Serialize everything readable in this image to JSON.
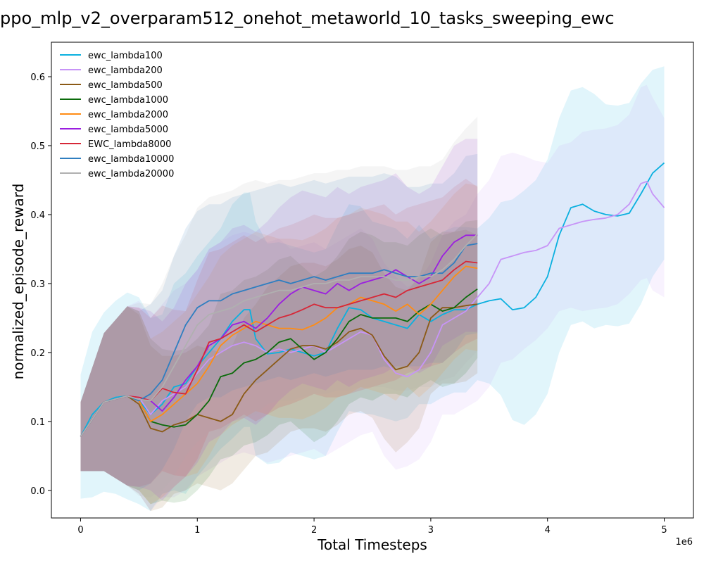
{
  "chart_data": {
    "type": "line",
    "title": "ppo_mlp_v2_overparam512_onehot_metaworld_10_tasks_sweeping_ewc",
    "xlabel": "Total Timesteps",
    "ylabel": "normalized_episode_reward",
    "x_scale_label": "1e6",
    "xlim": [
      -0.25,
      5.25
    ],
    "ylim": [
      -0.04,
      0.65
    ],
    "x_ticks": [
      0,
      1,
      2,
      3,
      4,
      5
    ],
    "y_ticks": [
      0.0,
      0.1,
      0.2,
      0.3,
      0.4,
      0.5,
      0.6
    ],
    "legend_position": "top-left",
    "grid": false,
    "series": [
      {
        "name": "ewc_lambda100",
        "color": "#0bb0df",
        "x": [
          0,
          0.1,
          0.2,
          0.3,
          0.4,
          0.5,
          0.6,
          0.7,
          0.8,
          0.9,
          1.0,
          1.1,
          1.2,
          1.3,
          1.4,
          1.45,
          1.5,
          1.6,
          1.7,
          1.8,
          1.9,
          2.0,
          2.1,
          2.2,
          2.3,
          2.4,
          2.5,
          2.6,
          2.7,
          2.8,
          2.9,
          3.0,
          3.1,
          3.2,
          3.3,
          3.4,
          3.5,
          3.6,
          3.7,
          3.8,
          3.9,
          4.0,
          4.1,
          4.2,
          4.3,
          4.4,
          4.5,
          4.6,
          4.7,
          4.8,
          4.9,
          5.0
        ],
        "y": [
          0.078,
          0.11,
          0.128,
          0.135,
          0.137,
          0.13,
          0.11,
          0.125,
          0.15,
          0.155,
          0.18,
          0.2,
          0.22,
          0.245,
          0.262,
          0.262,
          0.22,
          0.198,
          0.2,
          0.205,
          0.2,
          0.195,
          0.2,
          0.235,
          0.265,
          0.262,
          0.25,
          0.245,
          0.24,
          0.235,
          0.255,
          0.245,
          0.255,
          0.262,
          0.262,
          0.27,
          0.275,
          0.278,
          0.262,
          0.265,
          0.28,
          0.31,
          0.37,
          0.41,
          0.415,
          0.405,
          0.4,
          0.398,
          0.402,
          0.43,
          0.46,
          0.475
        ],
        "band": [
          0.09,
          0.12,
          0.13,
          0.14,
          0.15,
          0.15,
          0.14,
          0.13,
          0.15,
          0.16,
          0.16,
          0.16,
          0.16,
          0.17,
          0.17,
          0.17,
          0.17,
          0.16,
          0.16,
          0.15,
          0.15,
          0.15,
          0.15,
          0.15,
          0.15,
          0.15,
          0.14,
          0.14,
          0.14,
          0.13,
          0.13,
          0.12,
          0.12,
          0.12,
          0.12,
          0.11,
          0.12,
          0.14,
          0.16,
          0.17,
          0.17,
          0.17,
          0.17,
          0.17,
          0.17,
          0.17,
          0.16,
          0.16,
          0.16,
          0.16,
          0.15,
          0.14
        ]
      },
      {
        "name": "ewc_lambda200",
        "color": "#c794f7",
        "x": [
          0,
          0.2,
          0.4,
          0.5,
          0.6,
          0.7,
          0.8,
          0.9,
          1.0,
          1.1,
          1.2,
          1.3,
          1.4,
          1.5,
          1.6,
          1.7,
          1.8,
          1.9,
          2.0,
          2.1,
          2.2,
          2.3,
          2.4,
          2.5,
          2.6,
          2.7,
          2.8,
          2.9,
          3.0,
          3.1,
          3.2,
          3.3,
          3.4,
          3.5,
          3.6,
          3.7,
          3.8,
          3.9,
          4.0,
          4.1,
          4.2,
          4.3,
          4.4,
          4.5,
          4.6,
          4.7,
          4.8,
          4.85,
          4.9,
          5.0
        ],
        "y": [
          0.078,
          0.128,
          0.137,
          0.135,
          0.11,
          0.13,
          0.14,
          0.15,
          0.17,
          0.19,
          0.2,
          0.21,
          0.215,
          0.21,
          0.2,
          0.205,
          0.2,
          0.205,
          0.21,
          0.2,
          0.21,
          0.22,
          0.23,
          0.225,
          0.19,
          0.17,
          0.165,
          0.175,
          0.2,
          0.24,
          0.25,
          0.26,
          0.28,
          0.3,
          0.335,
          0.34,
          0.345,
          0.348,
          0.355,
          0.38,
          0.385,
          0.39,
          0.393,
          0.395,
          0.4,
          0.415,
          0.445,
          0.448,
          0.43,
          0.41
        ],
        "band": [
          0.05,
          0.1,
          0.13,
          0.14,
          0.14,
          0.14,
          0.15,
          0.15,
          0.15,
          0.16,
          0.16,
          0.16,
          0.16,
          0.16,
          0.16,
          0.16,
          0.15,
          0.15,
          0.15,
          0.15,
          0.15,
          0.15,
          0.15,
          0.14,
          0.14,
          0.14,
          0.13,
          0.13,
          0.13,
          0.13,
          0.14,
          0.14,
          0.15,
          0.15,
          0.15,
          0.15,
          0.14,
          0.13,
          0.12,
          0.12,
          0.12,
          0.13,
          0.13,
          0.13,
          0.13,
          0.13,
          0.14,
          0.14,
          0.14,
          0.13
        ]
      },
      {
        "name": "ewc_lambda500",
        "color": "#8b5a16",
        "x": [
          0,
          0.2,
          0.4,
          0.5,
          0.6,
          0.7,
          0.8,
          0.9,
          1.0,
          1.1,
          1.2,
          1.3,
          1.4,
          1.5,
          1.6,
          1.7,
          1.8,
          1.9,
          2.0,
          2.1,
          2.2,
          2.3,
          2.4,
          2.5,
          2.6,
          2.7,
          2.8,
          2.9,
          3.0,
          3.1,
          3.2,
          3.3,
          3.4
        ],
        "y": [
          0.078,
          0.128,
          0.137,
          0.125,
          0.09,
          0.085,
          0.095,
          0.1,
          0.11,
          0.105,
          0.1,
          0.11,
          0.14,
          0.16,
          0.175,
          0.19,
          0.205,
          0.21,
          0.21,
          0.205,
          0.215,
          0.23,
          0.235,
          0.225,
          0.195,
          0.175,
          0.18,
          0.2,
          0.25,
          0.265,
          0.265,
          0.268,
          0.27
        ],
        "band": [
          0.05,
          0.1,
          0.13,
          0.13,
          0.12,
          0.11,
          0.1,
          0.1,
          0.1,
          0.1,
          0.1,
          0.1,
          0.11,
          0.11,
          0.12,
          0.12,
          0.12,
          0.12,
          0.12,
          0.12,
          0.12,
          0.12,
          0.12,
          0.12,
          0.12,
          0.12,
          0.11,
          0.11,
          0.11,
          0.11,
          0.11,
          0.11,
          0.1
        ]
      },
      {
        "name": "ewc_lambda1000",
        "color": "#0b6b0b",
        "x": [
          0,
          0.2,
          0.4,
          0.5,
          0.6,
          0.7,
          0.8,
          0.9,
          1.0,
          1.1,
          1.2,
          1.3,
          1.4,
          1.5,
          1.6,
          1.7,
          1.8,
          1.9,
          2.0,
          2.1,
          2.2,
          2.3,
          2.4,
          2.5,
          2.6,
          2.7,
          2.8,
          2.9,
          3.0,
          3.1,
          3.2,
          3.3,
          3.4
        ],
        "y": [
          0.078,
          0.128,
          0.137,
          0.13,
          0.1,
          0.095,
          0.092,
          0.095,
          0.11,
          0.13,
          0.165,
          0.17,
          0.185,
          0.19,
          0.2,
          0.215,
          0.22,
          0.205,
          0.19,
          0.2,
          0.22,
          0.245,
          0.255,
          0.25,
          0.25,
          0.25,
          0.245,
          0.26,
          0.27,
          0.26,
          0.265,
          0.28,
          0.292
        ],
        "band": [
          0.05,
          0.1,
          0.13,
          0.13,
          0.12,
          0.11,
          0.11,
          0.11,
          0.11,
          0.11,
          0.12,
          0.12,
          0.12,
          0.12,
          0.12,
          0.12,
          0.12,
          0.12,
          0.12,
          0.12,
          0.12,
          0.12,
          0.12,
          0.12,
          0.11,
          0.11,
          0.11,
          0.11,
          0.11,
          0.11,
          0.11,
          0.11,
          0.1
        ]
      },
      {
        "name": "ewc_lambda2000",
        "color": "#ff8c14",
        "x": [
          0,
          0.2,
          0.4,
          0.5,
          0.6,
          0.7,
          0.8,
          0.9,
          1.0,
          1.1,
          1.2,
          1.3,
          1.4,
          1.5,
          1.6,
          1.7,
          1.8,
          1.9,
          2.0,
          2.1,
          2.2,
          2.3,
          2.4,
          2.5,
          2.6,
          2.7,
          2.8,
          2.9,
          3.0,
          3.1,
          3.2,
          3.3,
          3.4
        ],
        "y": [
          0.078,
          0.128,
          0.137,
          0.13,
          0.1,
          0.11,
          0.125,
          0.14,
          0.155,
          0.18,
          0.21,
          0.225,
          0.235,
          0.245,
          0.24,
          0.235,
          0.235,
          0.233,
          0.24,
          0.25,
          0.265,
          0.27,
          0.28,
          0.275,
          0.27,
          0.26,
          0.27,
          0.255,
          0.27,
          0.29,
          0.31,
          0.325,
          0.322
        ],
        "band": [
          0.05,
          0.1,
          0.13,
          0.13,
          0.12,
          0.12,
          0.12,
          0.12,
          0.13,
          0.13,
          0.13,
          0.13,
          0.13,
          0.13,
          0.13,
          0.13,
          0.13,
          0.13,
          0.13,
          0.13,
          0.13,
          0.13,
          0.13,
          0.13,
          0.13,
          0.13,
          0.12,
          0.12,
          0.12,
          0.12,
          0.12,
          0.12,
          0.12
        ]
      },
      {
        "name": "ewc_lambda5000",
        "color": "#9b1ee0",
        "x": [
          0,
          0.2,
          0.4,
          0.5,
          0.6,
          0.7,
          0.8,
          0.9,
          1.0,
          1.1,
          1.2,
          1.3,
          1.4,
          1.5,
          1.6,
          1.7,
          1.8,
          1.9,
          2.0,
          2.1,
          2.2,
          2.3,
          2.4,
          2.5,
          2.6,
          2.7,
          2.8,
          2.9,
          3.0,
          3.1,
          3.2,
          3.3,
          3.4
        ],
        "y": [
          0.078,
          0.128,
          0.137,
          0.135,
          0.13,
          0.115,
          0.135,
          0.16,
          0.18,
          0.21,
          0.22,
          0.24,
          0.245,
          0.235,
          0.25,
          0.27,
          0.285,
          0.295,
          0.29,
          0.285,
          0.3,
          0.29,
          0.3,
          0.305,
          0.31,
          0.32,
          0.31,
          0.3,
          0.31,
          0.34,
          0.36,
          0.37,
          0.37
        ],
        "band": [
          0.05,
          0.1,
          0.13,
          0.13,
          0.13,
          0.13,
          0.13,
          0.14,
          0.14,
          0.14,
          0.14,
          0.14,
          0.14,
          0.14,
          0.14,
          0.14,
          0.14,
          0.14,
          0.14,
          0.14,
          0.14,
          0.14,
          0.14,
          0.14,
          0.14,
          0.14,
          0.13,
          0.13,
          0.13,
          0.13,
          0.14,
          0.14,
          0.14
        ]
      },
      {
        "name": "EWC_lambda8000",
        "color": "#d62838",
        "x": [
          0,
          0.2,
          0.4,
          0.5,
          0.6,
          0.7,
          0.8,
          0.9,
          1.0,
          1.1,
          1.2,
          1.3,
          1.4,
          1.5,
          1.6,
          1.7,
          1.8,
          1.9,
          2.0,
          2.1,
          2.2,
          2.3,
          2.4,
          2.5,
          2.6,
          2.7,
          2.8,
          2.9,
          3.0,
          3.1,
          3.2,
          3.3,
          3.4
        ],
        "y": [
          0.078,
          0.128,
          0.137,
          0.135,
          0.13,
          0.148,
          0.142,
          0.14,
          0.175,
          0.215,
          0.22,
          0.23,
          0.24,
          0.23,
          0.24,
          0.25,
          0.255,
          0.262,
          0.27,
          0.265,
          0.265,
          0.27,
          0.275,
          0.28,
          0.285,
          0.28,
          0.29,
          0.295,
          0.3,
          0.305,
          0.32,
          0.332,
          0.33
        ],
        "band": [
          0.05,
          0.1,
          0.13,
          0.13,
          0.12,
          0.12,
          0.12,
          0.12,
          0.13,
          0.13,
          0.13,
          0.13,
          0.13,
          0.13,
          0.13,
          0.13,
          0.13,
          0.13,
          0.13,
          0.13,
          0.13,
          0.13,
          0.13,
          0.13,
          0.13,
          0.12,
          0.12,
          0.12,
          0.12,
          0.12,
          0.12,
          0.12,
          0.11
        ]
      },
      {
        "name": "ewc_lambda10000",
        "color": "#2f7ec0",
        "x": [
          0,
          0.2,
          0.4,
          0.5,
          0.6,
          0.7,
          0.8,
          0.9,
          1.0,
          1.1,
          1.2,
          1.3,
          1.4,
          1.5,
          1.6,
          1.7,
          1.8,
          1.9,
          2.0,
          2.1,
          2.2,
          2.3,
          2.4,
          2.5,
          2.6,
          2.7,
          2.8,
          2.9,
          3.0,
          3.1,
          3.2,
          3.3,
          3.4
        ],
        "y": [
          0.078,
          0.128,
          0.137,
          0.13,
          0.14,
          0.16,
          0.2,
          0.24,
          0.265,
          0.275,
          0.275,
          0.285,
          0.29,
          0.295,
          0.3,
          0.305,
          0.3,
          0.305,
          0.31,
          0.305,
          0.31,
          0.315,
          0.315,
          0.315,
          0.32,
          0.315,
          0.31,
          0.31,
          0.315,
          0.315,
          0.33,
          0.355,
          0.358
        ],
        "band": [
          0.05,
          0.1,
          0.13,
          0.13,
          0.13,
          0.13,
          0.14,
          0.14,
          0.14,
          0.14,
          0.14,
          0.14,
          0.14,
          0.14,
          0.14,
          0.14,
          0.14,
          0.14,
          0.14,
          0.14,
          0.14,
          0.14,
          0.14,
          0.14,
          0.14,
          0.14,
          0.13,
          0.13,
          0.13,
          0.13,
          0.13,
          0.13,
          0.13
        ]
      },
      {
        "name": "ewc_lambda20000",
        "color": "#b0b0b0",
        "x": [
          0,
          0.2,
          0.4,
          0.5,
          0.6,
          0.7,
          0.8,
          0.9,
          1.0,
          1.1,
          1.2,
          1.3,
          1.4,
          1.5,
          1.6,
          1.7,
          1.8,
          1.9,
          2.0,
          2.1,
          2.2,
          2.3,
          2.4,
          2.5,
          2.6,
          2.7,
          2.8,
          2.9,
          3.0,
          3.1,
          3.2,
          3.3,
          3.4
        ],
        "y": [
          0.078,
          0.128,
          0.137,
          0.132,
          0.13,
          0.15,
          0.18,
          0.21,
          0.24,
          0.255,
          0.26,
          0.265,
          0.275,
          0.28,
          0.285,
          0.29,
          0.29,
          0.295,
          0.3,
          0.3,
          0.305,
          0.305,
          0.31,
          0.31,
          0.31,
          0.305,
          0.305,
          0.31,
          0.31,
          0.32,
          0.335,
          0.355,
          0.372
        ],
        "band": [
          0.05,
          0.1,
          0.13,
          0.14,
          0.14,
          0.15,
          0.16,
          0.16,
          0.17,
          0.17,
          0.17,
          0.17,
          0.17,
          0.17,
          0.16,
          0.16,
          0.16,
          0.16,
          0.16,
          0.16,
          0.16,
          0.16,
          0.16,
          0.16,
          0.16,
          0.16,
          0.16,
          0.16,
          0.16,
          0.16,
          0.17,
          0.17,
          0.17
        ]
      }
    ]
  }
}
